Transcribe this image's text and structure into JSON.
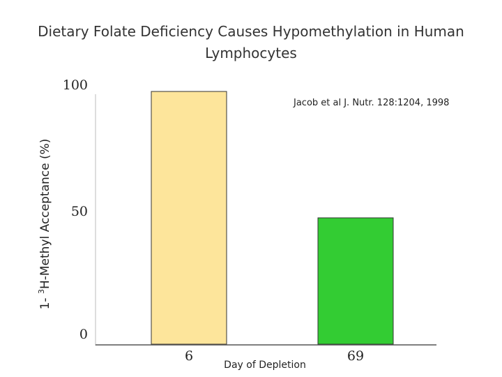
{
  "chart_data": {
    "type": "bar",
    "title": "Dietary Folate Deficiency Causes Hypomethylation in Human Lymphocytes",
    "ylabel_prefix": "1-",
    "ylabel_superscript": "3",
    "ylabel_main": "H-Methyl Acceptance (%)",
    "xlabel": "Day of Depletion",
    "categories": [
      "6",
      "69"
    ],
    "values": [
      100,
      50
    ],
    "colors": [
      "#fde59b",
      "#33cc33"
    ],
    "yticks": [
      {
        "value": 0,
        "label": "0"
      },
      {
        "value": 50,
        "label": "50"
      },
      {
        "value": 100,
        "label": "100"
      }
    ],
    "ylim": [
      0,
      100
    ],
    "annotation": "Jacob et al J. Nutr. 128:1204, 1998"
  }
}
